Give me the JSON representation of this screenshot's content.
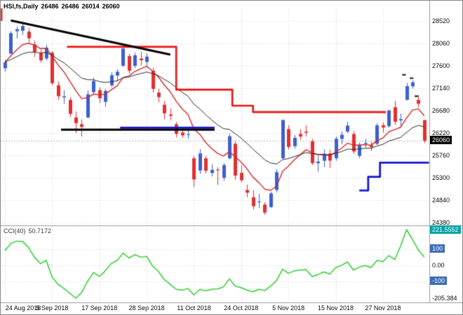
{
  "header": {
    "symbol": "HSI,fs,Daily",
    "open": "26486",
    "high": "26486",
    "low": "26014",
    "close": "26060"
  },
  "chart_data": {
    "type": "candlestick",
    "symbol": "HSI",
    "timeframe": "Daily",
    "price_axis": {
      "ticks": [
        28520,
        28060,
        27600,
        27140,
        26680,
        26220,
        25760,
        25300,
        24840,
        24380
      ],
      "current": 26060,
      "current_label": "26060"
    },
    "x_axis": {
      "labels": [
        [
          "24 Aug 2018",
          0
        ],
        [
          "5 Sep 2018",
          8
        ],
        [
          "17 Sep 2018",
          16
        ],
        [
          "28 Sep 2018",
          24
        ],
        [
          "11 Oct 2018",
          32
        ],
        [
          "24 Oct 2018",
          40
        ],
        [
          "5 Nov 2018",
          48
        ],
        [
          "15 Nov 2018",
          56
        ],
        [
          "27 Nov 2018",
          64
        ]
      ]
    },
    "candles_format": [
      "date",
      "open",
      "high",
      "low",
      "close"
    ],
    "candles": [
      [
        "2018-08-24",
        27550,
        27720,
        27480,
        27671
      ],
      [
        "2018-08-27",
        27850,
        28310,
        27840,
        28271
      ],
      [
        "2018-08-28",
        28310,
        28404,
        28160,
        28351
      ],
      [
        "2018-08-29",
        28320,
        28459,
        28232,
        28416
      ],
      [
        "2018-08-30",
        28300,
        28380,
        28080,
        28164
      ],
      [
        "2018-08-31",
        28040,
        28120,
        27780,
        27888
      ],
      [
        "2018-09-03",
        27860,
        27940,
        27660,
        27712
      ],
      [
        "2018-09-04",
        27750,
        28030,
        27710,
        27973
      ],
      [
        "2018-09-05",
        27870,
        27900,
        27200,
        27243
      ],
      [
        "2018-09-06",
        27200,
        27280,
        26900,
        26974
      ],
      [
        "2018-09-07",
        26950,
        27100,
        26820,
        26973
      ],
      [
        "2018-09-10",
        26900,
        26950,
        26550,
        26613
      ],
      [
        "2018-09-11",
        26540,
        26660,
        26219,
        26423
      ],
      [
        "2018-09-12",
        26400,
        26500,
        26147,
        26345
      ],
      [
        "2018-09-13",
        26540,
        27100,
        26520,
        27014
      ],
      [
        "2018-09-14",
        27060,
        27360,
        27000,
        27286
      ],
      [
        "2018-09-17",
        27100,
        27160,
        26840,
        26933
      ],
      [
        "2018-09-18",
        26860,
        27120,
        26760,
        27085
      ],
      [
        "2018-09-19",
        27200,
        27470,
        27160,
        27407
      ],
      [
        "2018-09-20",
        27400,
        27530,
        27280,
        27477
      ],
      [
        "2018-09-21",
        27600,
        27999,
        27580,
        27954
      ],
      [
        "2018-09-24",
        27800,
        27850,
        27440,
        27499
      ],
      [
        "2018-09-26",
        27600,
        27870,
        27550,
        27816
      ],
      [
        "2018-09-27",
        27750,
        27890,
        27610,
        27715
      ],
      [
        "2018-09-28",
        27680,
        27860,
        27600,
        27788
      ],
      [
        "2018-10-02",
        27500,
        27560,
        27050,
        27126
      ],
      [
        "2018-10-03",
        27050,
        27130,
        26850,
        26957
      ],
      [
        "2018-10-04",
        26800,
        26880,
        26500,
        26623
      ],
      [
        "2018-10-05",
        26600,
        26720,
        26480,
        26572
      ],
      [
        "2018-10-08",
        26400,
        26450,
        26130,
        26202
      ],
      [
        "2018-10-09",
        26230,
        26350,
        26120,
        26172
      ],
      [
        "2018-10-10",
        26180,
        26340,
        26100,
        26193
      ],
      [
        "2018-10-11",
        25700,
        25750,
        25110,
        25266
      ],
      [
        "2018-10-12",
        25450,
        25890,
        25380,
        25801
      ],
      [
        "2018-10-15",
        25700,
        25750,
        25390,
        25445
      ],
      [
        "2018-10-16",
        25400,
        25580,
        25330,
        25462
      ],
      [
        "2018-10-18",
        25470,
        25520,
        25155,
        25454
      ],
      [
        "2018-10-19",
        25300,
        25601,
        25240,
        25561
      ],
      [
        "2018-10-22",
        25700,
        26200,
        25680,
        26153
      ],
      [
        "2018-10-23",
        26000,
        26050,
        25260,
        25346
      ],
      [
        "2018-10-24",
        25400,
        25560,
        25210,
        25249
      ],
      [
        "2018-10-25",
        25050,
        25160,
        24900,
        24994
      ],
      [
        "2018-10-26",
        24900,
        25050,
        24650,
        24717
      ],
      [
        "2018-10-29",
        24800,
        24970,
        24680,
        24812
      ],
      [
        "2018-10-30",
        24750,
        24800,
        24540,
        24585
      ],
      [
        "2018-10-31",
        24700,
        25020,
        24680,
        24979
      ],
      [
        "2018-11-01",
        25050,
        25470,
        25000,
        25416
      ],
      [
        "2018-11-02",
        25700,
        26500,
        25680,
        26486
      ],
      [
        "2018-11-05",
        26300,
        26380,
        25880,
        25934
      ],
      [
        "2018-11-06",
        25950,
        26180,
        25900,
        26120
      ],
      [
        "2018-11-07",
        26200,
        26300,
        26080,
        26147
      ],
      [
        "2018-11-08",
        26250,
        26380,
        26150,
        26227
      ],
      [
        "2018-11-09",
        26050,
        26100,
        25560,
        25601
      ],
      [
        "2018-11-12",
        25600,
        25750,
        25430,
        25633
      ],
      [
        "2018-11-13",
        25650,
        25890,
        25520,
        25792
      ],
      [
        "2018-11-14",
        25800,
        25880,
        25500,
        25654
      ],
      [
        "2018-11-15",
        25700,
        26150,
        25650,
        26103
      ],
      [
        "2018-11-16",
        26100,
        26250,
        25990,
        26183
      ],
      [
        "2018-11-19",
        26250,
        26450,
        26220,
        26372
      ],
      [
        "2018-11-20",
        26200,
        26260,
        25790,
        25840
      ],
      [
        "2018-11-21",
        25750,
        26020,
        25700,
        25971
      ],
      [
        "2018-11-22",
        26000,
        26100,
        25920,
        26019
      ],
      [
        "2018-11-23",
        25970,
        26040,
        25850,
        25928
      ],
      [
        "2018-11-26",
        26000,
        26420,
        25970,
        26376
      ],
      [
        "2018-11-27",
        26380,
        26440,
        26230,
        26331
      ],
      [
        "2018-11-28",
        26360,
        26700,
        26330,
        26682
      ],
      [
        "2018-11-29",
        26750,
        26880,
        26390,
        26451
      ],
      [
        "2018-11-30",
        26480,
        26620,
        26340,
        26506
      ],
      [
        "2018-12-03",
        26900,
        27250,
        26890,
        27182
      ],
      [
        "2018-12-04",
        27180,
        27300,
        27130,
        27260
      ],
      [
        "2018-12-05",
        26900,
        27000,
        26750,
        26819
      ],
      [
        "2018-12-06",
        26486,
        26486,
        26014,
        26060
      ]
    ],
    "style": {
      "bull": "#3e5fd0",
      "bear": "#e03030",
      "grid": "#d8d8d8",
      "separator": "#9a9a9a",
      "border": "#808080"
    },
    "moving_averages": [
      {
        "period": 8,
        "color": "#d42a2a",
        "width": 1.4
      },
      {
        "period": 20,
        "color": "#2b2b2b",
        "width": 1
      }
    ],
    "step_lines": [
      {
        "color": "#ee1111",
        "width": 2.6,
        "points": [
          [
            10.5,
            27990
          ],
          [
            29,
            27990
          ],
          [
            29,
            27110
          ],
          [
            38.5,
            27110
          ],
          [
            38.5,
            26780
          ],
          [
            42,
            26780
          ],
          [
            42,
            26650
          ],
          [
            64.5,
            26650
          ]
        ]
      },
      {
        "color": "#1515d6",
        "width": 2.8,
        "points": [
          [
            19.5,
            26330
          ],
          [
            35.5,
            26330
          ]
        ]
      },
      {
        "color": "#1515d6",
        "width": 2.8,
        "points": [
          [
            60,
            25040
          ],
          [
            61.5,
            25040
          ],
          [
            61.5,
            25320
          ],
          [
            63.5,
            25320
          ],
          [
            63.5,
            25610
          ],
          [
            71.8,
            25610
          ]
        ]
      }
    ],
    "trend_lines": [
      {
        "color": "#000000",
        "width": 3,
        "points": [
          [
            1,
            28530
          ],
          [
            28,
            27830
          ]
        ]
      },
      {
        "color": "#000000",
        "width": 3,
        "points": [
          [
            9.5,
            26290
          ],
          [
            35.5,
            26290
          ]
        ]
      },
      {
        "color": "#e00000",
        "width": 2,
        "points": [
          [
            -0.55,
            28780
          ],
          [
            -0.55,
            28520
          ]
        ]
      }
    ],
    "markers": [
      [
        67.5,
        27430
      ],
      [
        68.8,
        27360
      ],
      [
        69.6,
        26990
      ]
    ],
    "indicator": {
      "name": "CCI(40)",
      "value": "50.7172",
      "color": "#32cd32",
      "scale_max": 221.5552,
      "scale_min": -205.384,
      "scale_max_label": "221.5552",
      "scale_min_label": "-205.384",
      "level_100": "100",
      "level_0": "0.00",
      "level_m100": "-100",
      "levels": [
        100,
        0,
        -100
      ],
      "values": [
        90,
        135,
        150,
        148,
        110,
        50,
        10,
        30,
        -75,
        -120,
        -145,
        -175,
        -205.384,
        -170,
        -100,
        -45,
        -70,
        -35,
        10,
        30,
        75,
        45,
        65,
        50,
        55,
        -5,
        -40,
        -90,
        -120,
        -150,
        -155,
        -145,
        -185,
        -150,
        -160,
        -150,
        -148,
        -135,
        -85,
        -130,
        -140,
        -155,
        -165,
        -150,
        -158,
        -130,
        -95,
        -25,
        -50,
        -35,
        -30,
        -28,
        -70,
        -58,
        -42,
        -55,
        -15,
        0,
        20,
        -30,
        -12,
        -2,
        -15,
        30,
        22,
        60,
        35,
        120,
        221.5552,
        160,
        95,
        50.7172
      ]
    }
  }
}
